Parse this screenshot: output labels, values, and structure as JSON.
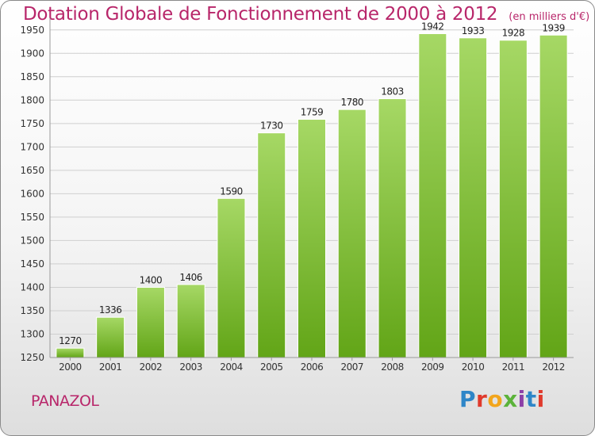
{
  "title": "Dotation Globale de Fonctionnement de 2000 à 2012",
  "unit": "(en milliers d'€)",
  "commune": "PANAZOL",
  "logo": {
    "text": "Proxiti",
    "colors": [
      "#2e86c8",
      "#e03a2c",
      "#f2a51c",
      "#5bb33a",
      "#8c3fa8",
      "#2e86c8",
      "#e03a2c"
    ]
  },
  "colors": {
    "bar_light": "#a6d865",
    "bar_dark": "#62a517",
    "title": "#b8266a",
    "grid": "#cfcfcf"
  },
  "chart_data": {
    "type": "bar",
    "categories": [
      "2000",
      "2001",
      "2002",
      "2003",
      "2004",
      "2005",
      "2006",
      "2007",
      "2008",
      "2009",
      "2010",
      "2011",
      "2012"
    ],
    "values": [
      1270,
      1336,
      1400,
      1406,
      1590,
      1730,
      1759,
      1780,
      1803,
      1942,
      1933,
      1928,
      1939
    ],
    "ylim": [
      1250,
      1975
    ],
    "yticks": [
      1250,
      1300,
      1350,
      1400,
      1450,
      1500,
      1550,
      1600,
      1650,
      1700,
      1750,
      1800,
      1850,
      1900,
      1950
    ],
    "grid": true,
    "data_labels": true
  }
}
